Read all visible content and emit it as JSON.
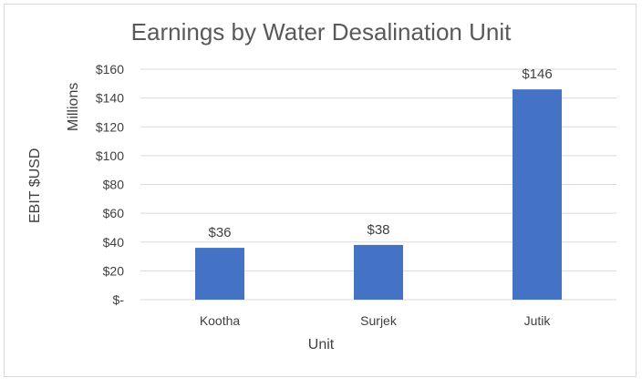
{
  "chart_data": {
    "type": "bar",
    "title": "Earnings by Water Desalination Unit",
    "xlabel": "Unit",
    "ylabel": "EBIT $USD",
    "yunit_label": "Millions",
    "categories": [
      "Kootha",
      "Surjek",
      "Jutik"
    ],
    "values": [
      36,
      38,
      146
    ],
    "data_labels": [
      "$36",
      "$38",
      "$146"
    ],
    "ylim": [
      0,
      160
    ],
    "yticks": [
      0,
      20,
      40,
      60,
      80,
      100,
      120,
      140,
      160
    ],
    "ytick_labels": [
      "$-",
      "$20",
      "$40",
      "$60",
      "$80",
      "$100",
      "$120",
      "$140",
      "$160"
    ],
    "grid": true,
    "legend": "none",
    "bar_color": "#4472C4",
    "grid_color": "#d9d9d9"
  }
}
